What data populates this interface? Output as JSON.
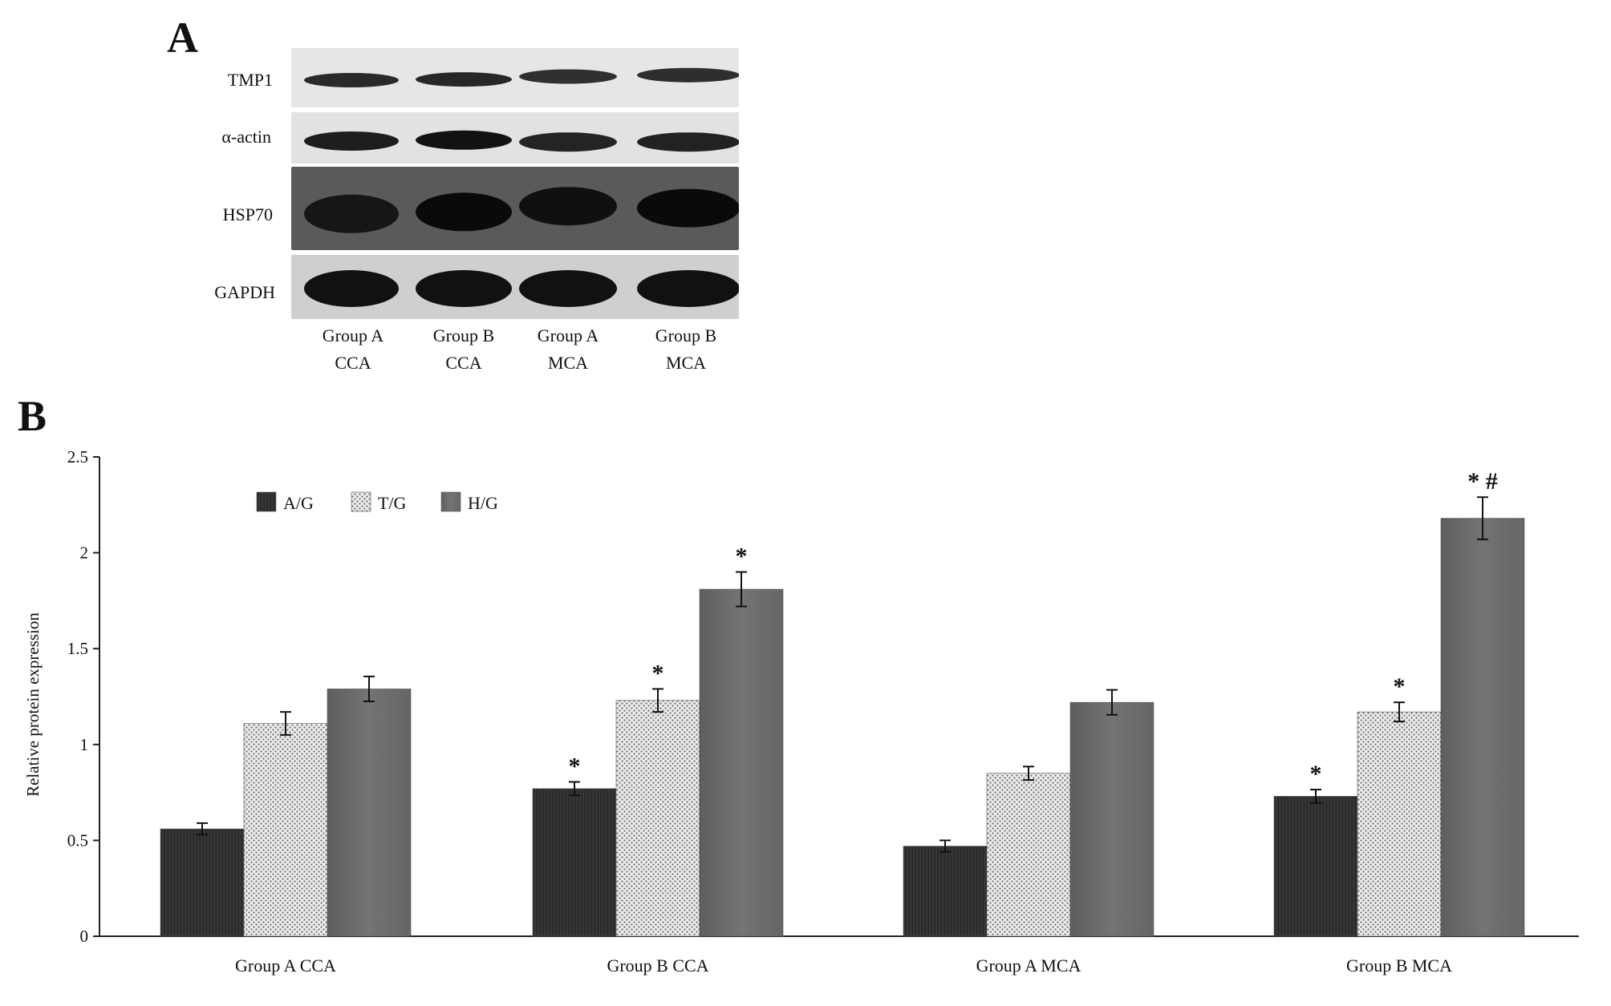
{
  "panel_a": {
    "letter": "A",
    "rows": [
      {
        "label": "TMP1",
        "band_intensity": [
          0.75,
          0.78,
          0.7,
          0.72
        ],
        "band_offsets": [
          0.0,
          -0.05,
          -0.25,
          -0.35
        ]
      },
      {
        "label": "α-actin",
        "band_intensity": [
          0.85,
          0.95,
          0.8,
          0.82
        ],
        "band_offsets": [
          0,
          -0.05,
          0.05,
          0.05
        ]
      },
      {
        "label": "HSP70",
        "band_intensity": [
          0.85,
          0.95,
          0.9,
          0.95
        ],
        "band_offsets": [
          0.1,
          0.05,
          -0.1,
          -0.05
        ]
      },
      {
        "label": "GAPDH",
        "band_intensity": [
          0.95,
          0.95,
          0.95,
          0.95
        ],
        "band_offsets": [
          0,
          0,
          0,
          0
        ]
      }
    ],
    "lanes": [
      {
        "line1": "Group A",
        "line2": "CCA"
      },
      {
        "line1": "Group B",
        "line2": "CCA"
      },
      {
        "line1": "Group A",
        "line2": "MCA"
      },
      {
        "line1": "Group B",
        "line2": "MCA"
      }
    ]
  },
  "panel_b": {
    "letter": "B"
  },
  "chart_data": {
    "type": "bar",
    "title": "",
    "xlabel": "",
    "ylabel": "Relative protein expression",
    "ylim": [
      0,
      2.5
    ],
    "yticks": [
      "0",
      "0.5",
      "1",
      "1.5",
      "2",
      "2.5"
    ],
    "ytick_values": [
      0,
      0.5,
      1,
      1.5,
      2,
      2.5
    ],
    "categories": [
      "Group A CCA",
      "Group B CCA",
      "Group A MCA",
      "Group B MCA"
    ],
    "legend_position": "top-left",
    "series": [
      {
        "name": "A/G",
        "color": "#2b2b2b",
        "pattern": "vertical-lines",
        "values": [
          0.56,
          0.77,
          0.47,
          0.73
        ],
        "errors": [
          0.03,
          0.035,
          0.03,
          0.035
        ],
        "annotations": [
          "",
          "*",
          "",
          "*"
        ]
      },
      {
        "name": "T/G",
        "color": "#d8d8d8",
        "pattern": "dots",
        "values": [
          1.11,
          1.23,
          0.85,
          1.17
        ],
        "errors": [
          0.06,
          0.06,
          0.035,
          0.05
        ],
        "annotations": [
          "",
          "*",
          "",
          "*"
        ]
      },
      {
        "name": "H/G",
        "color": "#6e6e6e",
        "pattern": "solid",
        "values": [
          1.29,
          1.81,
          1.22,
          2.18
        ],
        "errors": [
          0.065,
          0.09,
          0.065,
          0.11
        ],
        "annotations": [
          "",
          "*",
          "",
          "* #"
        ]
      }
    ]
  }
}
